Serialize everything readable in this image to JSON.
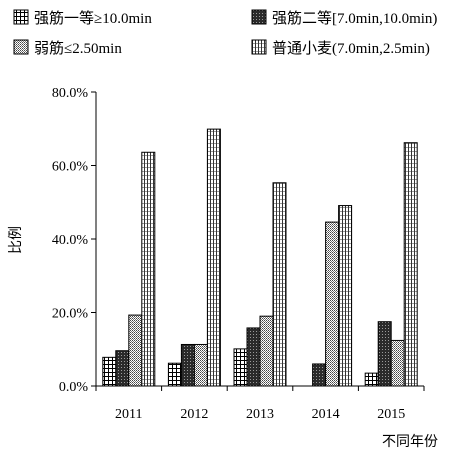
{
  "chart_data": {
    "type": "bar",
    "categories": [
      "2011",
      "2012",
      "2013",
      "2014",
      "2015"
    ],
    "series": [
      {
        "name": "强筋一等≥10.0min",
        "pattern": "grid",
        "values": [
          7.8,
          6.2,
          10.1,
          0,
          3.5
        ]
      },
      {
        "name": "强筋二等[7.0min,10.0min)",
        "pattern": "dark",
        "values": [
          9.6,
          11.3,
          15.8,
          6.0,
          17.5
        ]
      },
      {
        "name": "弱筋≤2.50min",
        "pattern": "fine",
        "values": [
          19.3,
          11.3,
          19.0,
          44.6,
          12.4
        ]
      },
      {
        "name": "普通小麦(7.0min,2.5min)",
        "pattern": "vertical",
        "values": [
          63.6,
          69.9,
          55.3,
          49.1,
          66.2
        ]
      }
    ],
    "xlabel": "不同年份",
    "ylabel": "比例",
    "ylim": [
      0,
      80
    ],
    "yticks": [
      "0.0%",
      "20.0%",
      "40.0%",
      "60.0%",
      "80.0%"
    ],
    "ytick_values": [
      0,
      20,
      40,
      60,
      80
    ],
    "grid": false,
    "legend_position": "top"
  }
}
